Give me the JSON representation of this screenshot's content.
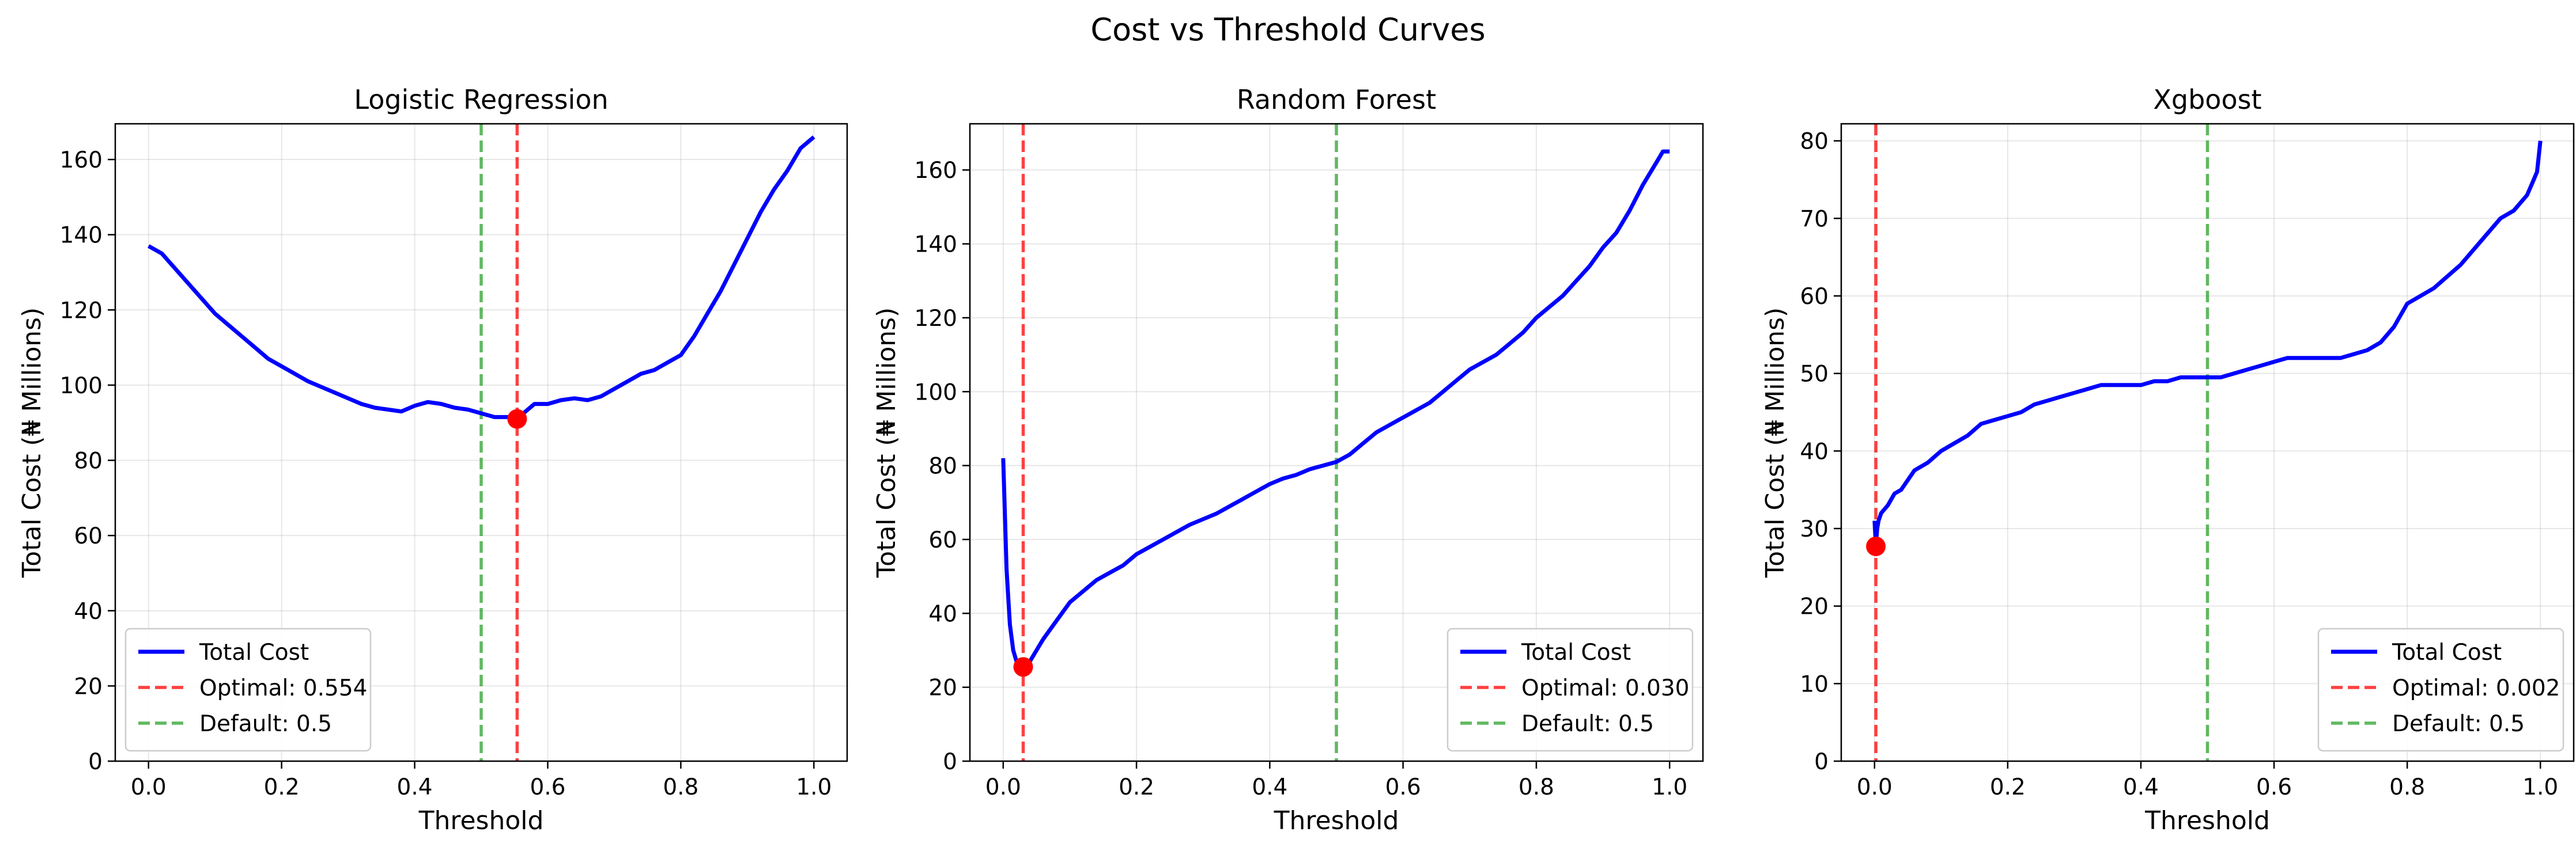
{
  "figure": {
    "title": "Cost vs Threshold Curves"
  },
  "chart_data": [
    {
      "type": "line",
      "title": "Logistic Regression",
      "xlabel": "Threshold",
      "ylabel": "Total Cost (₦ Millions)",
      "xlim": [
        -0.05,
        1.05
      ],
      "ylim": [
        0,
        169.5
      ],
      "xticks": [
        0.0,
        0.2,
        0.4,
        0.6,
        0.8,
        1.0
      ],
      "xtick_labels": [
        "0.0",
        "0.2",
        "0.4",
        "0.6",
        "0.8",
        "1.0"
      ],
      "yticks": [
        0,
        20,
        40,
        60,
        80,
        100,
        120,
        140,
        160
      ],
      "ytick_labels": [
        "0",
        "20",
        "40",
        "60",
        "80",
        "100",
        "120",
        "140",
        "160"
      ],
      "grid": true,
      "legend_position": "lower-left",
      "series": [
        {
          "name": "Total Cost",
          "color": "#0000ff",
          "x": [
            0.0,
            0.02,
            0.04,
            0.06,
            0.08,
            0.1,
            0.12,
            0.14,
            0.16,
            0.18,
            0.2,
            0.22,
            0.24,
            0.26,
            0.28,
            0.3,
            0.32,
            0.34,
            0.36,
            0.38,
            0.4,
            0.42,
            0.44,
            0.46,
            0.48,
            0.5,
            0.52,
            0.54,
            0.554,
            0.56,
            0.58,
            0.6,
            0.62,
            0.64,
            0.66,
            0.68,
            0.7,
            0.72,
            0.74,
            0.76,
            0.78,
            0.8,
            0.82,
            0.84,
            0.86,
            0.88,
            0.9,
            0.92,
            0.94,
            0.96,
            0.98,
            1.0
          ],
          "y": [
            137,
            135,
            131,
            127,
            123,
            119,
            116,
            113,
            110,
            107,
            105,
            103,
            101,
            99.5,
            98,
            96.5,
            95,
            94,
            93.5,
            93,
            94.5,
            95.5,
            95,
            94,
            93.5,
            92.5,
            91.5,
            91.5,
            91,
            92,
            95,
            95,
            96,
            96.5,
            96,
            97,
            99,
            101,
            103,
            104,
            106,
            108,
            113,
            119,
            125,
            132,
            139,
            146,
            152,
            157,
            163,
            166
          ]
        },
        {
          "name": "Optimal: 0.554",
          "color": "#ff0000",
          "vline": 0.554
        },
        {
          "name": "Default: 0.5",
          "color": "#2ca02c",
          "vline": 0.5
        }
      ],
      "optimal_point": {
        "x": 0.554,
        "y": 91
      }
    },
    {
      "type": "line",
      "title": "Random Forest",
      "xlabel": "Threshold",
      "ylabel": "Total Cost (₦ Millions)",
      "xlim": [
        -0.05,
        1.05
      ],
      "ylim": [
        0,
        172.5
      ],
      "xticks": [
        0.0,
        0.2,
        0.4,
        0.6,
        0.8,
        1.0
      ],
      "xtick_labels": [
        "0.0",
        "0.2",
        "0.4",
        "0.6",
        "0.8",
        "1.0"
      ],
      "yticks": [
        0,
        20,
        40,
        60,
        80,
        100,
        120,
        140,
        160
      ],
      "ytick_labels": [
        "0",
        "20",
        "40",
        "60",
        "80",
        "100",
        "120",
        "140",
        "160"
      ],
      "grid": true,
      "legend_position": "lower-right",
      "series": [
        {
          "name": "Total Cost",
          "color": "#0000ff",
          "x": [
            0.0,
            0.005,
            0.01,
            0.015,
            0.02,
            0.025,
            0.03,
            0.04,
            0.05,
            0.06,
            0.08,
            0.1,
            0.12,
            0.14,
            0.16,
            0.18,
            0.2,
            0.22,
            0.24,
            0.26,
            0.28,
            0.3,
            0.32,
            0.34,
            0.36,
            0.38,
            0.4,
            0.42,
            0.44,
            0.46,
            0.48,
            0.5,
            0.52,
            0.54,
            0.56,
            0.58,
            0.6,
            0.62,
            0.64,
            0.66,
            0.68,
            0.7,
            0.72,
            0.74,
            0.76,
            0.78,
            0.8,
            0.82,
            0.84,
            0.86,
            0.88,
            0.9,
            0.92,
            0.94,
            0.96,
            0.98,
            0.99,
            1.0
          ],
          "y": [
            82,
            52,
            37,
            30,
            27,
            26,
            25.5,
            27,
            30,
            33,
            38,
            43,
            46,
            49,
            51,
            53,
            56,
            58,
            60,
            62,
            64,
            65.5,
            67,
            69,
            71,
            73,
            75,
            76.5,
            77.5,
            79,
            80,
            81,
            83,
            86,
            89,
            91,
            93,
            95,
            97,
            100,
            103,
            106,
            108,
            110,
            113,
            116,
            120,
            123,
            126,
            130,
            134,
            139,
            143,
            149,
            156,
            162,
            165,
            165
          ]
        },
        {
          "name": "Optimal: 0.030",
          "color": "#ff0000",
          "vline": 0.03
        },
        {
          "name": "Default: 0.5",
          "color": "#2ca02c",
          "vline": 0.5
        }
      ],
      "optimal_point": {
        "x": 0.03,
        "y": 25.5
      }
    },
    {
      "type": "line",
      "title": "Xgboost",
      "xlabel": "Threshold",
      "ylabel": "Total Cost (₦ Millions)",
      "xlim": [
        -0.05,
        1.05
      ],
      "ylim": [
        0,
        82.2
      ],
      "xticks": [
        0.0,
        0.2,
        0.4,
        0.6,
        0.8,
        1.0
      ],
      "xtick_labels": [
        "0.0",
        "0.2",
        "0.4",
        "0.6",
        "0.8",
        "1.0"
      ],
      "yticks": [
        0,
        10,
        20,
        30,
        40,
        50,
        60,
        70,
        80
      ],
      "ytick_labels": [
        "0",
        "10",
        "20",
        "30",
        "40",
        "50",
        "60",
        "70",
        "80"
      ],
      "grid": true,
      "legend_position": "lower-right",
      "series": [
        {
          "name": "Total Cost",
          "color": "#0000ff",
          "x": [
            0.0,
            0.002,
            0.004,
            0.006,
            0.01,
            0.02,
            0.03,
            0.04,
            0.06,
            0.08,
            0.1,
            0.12,
            0.14,
            0.16,
            0.18,
            0.2,
            0.22,
            0.24,
            0.26,
            0.28,
            0.3,
            0.32,
            0.34,
            0.36,
            0.38,
            0.4,
            0.42,
            0.44,
            0.46,
            0.48,
            0.5,
            0.52,
            0.54,
            0.56,
            0.58,
            0.6,
            0.62,
            0.64,
            0.66,
            0.68,
            0.7,
            0.72,
            0.74,
            0.76,
            0.78,
            0.8,
            0.82,
            0.84,
            0.86,
            0.88,
            0.9,
            0.92,
            0.94,
            0.96,
            0.98,
            0.99,
            0.995,
            1.0
          ],
          "y": [
            31,
            27.7,
            30,
            31,
            32,
            33,
            34.5,
            35,
            37.5,
            38.5,
            40,
            41,
            42,
            43.5,
            44,
            44.5,
            45,
            46,
            46.5,
            47,
            47.5,
            48,
            48.5,
            48.5,
            48.5,
            48.5,
            49,
            49,
            49.5,
            49.5,
            49.5,
            49.5,
            50,
            50.5,
            51,
            51.5,
            52,
            52,
            52,
            52,
            52,
            52.5,
            53,
            54,
            56,
            59,
            60,
            61,
            62.5,
            64,
            66,
            68,
            70,
            71,
            73,
            75,
            76,
            80
          ]
        },
        {
          "name": "Optimal: 0.002",
          "color": "#ff0000",
          "vline": 0.002
        },
        {
          "name": "Default: 0.5",
          "color": "#2ca02c",
          "vline": 0.5
        }
      ],
      "optimal_point": {
        "x": 0.002,
        "y": 27.7
      }
    }
  ]
}
